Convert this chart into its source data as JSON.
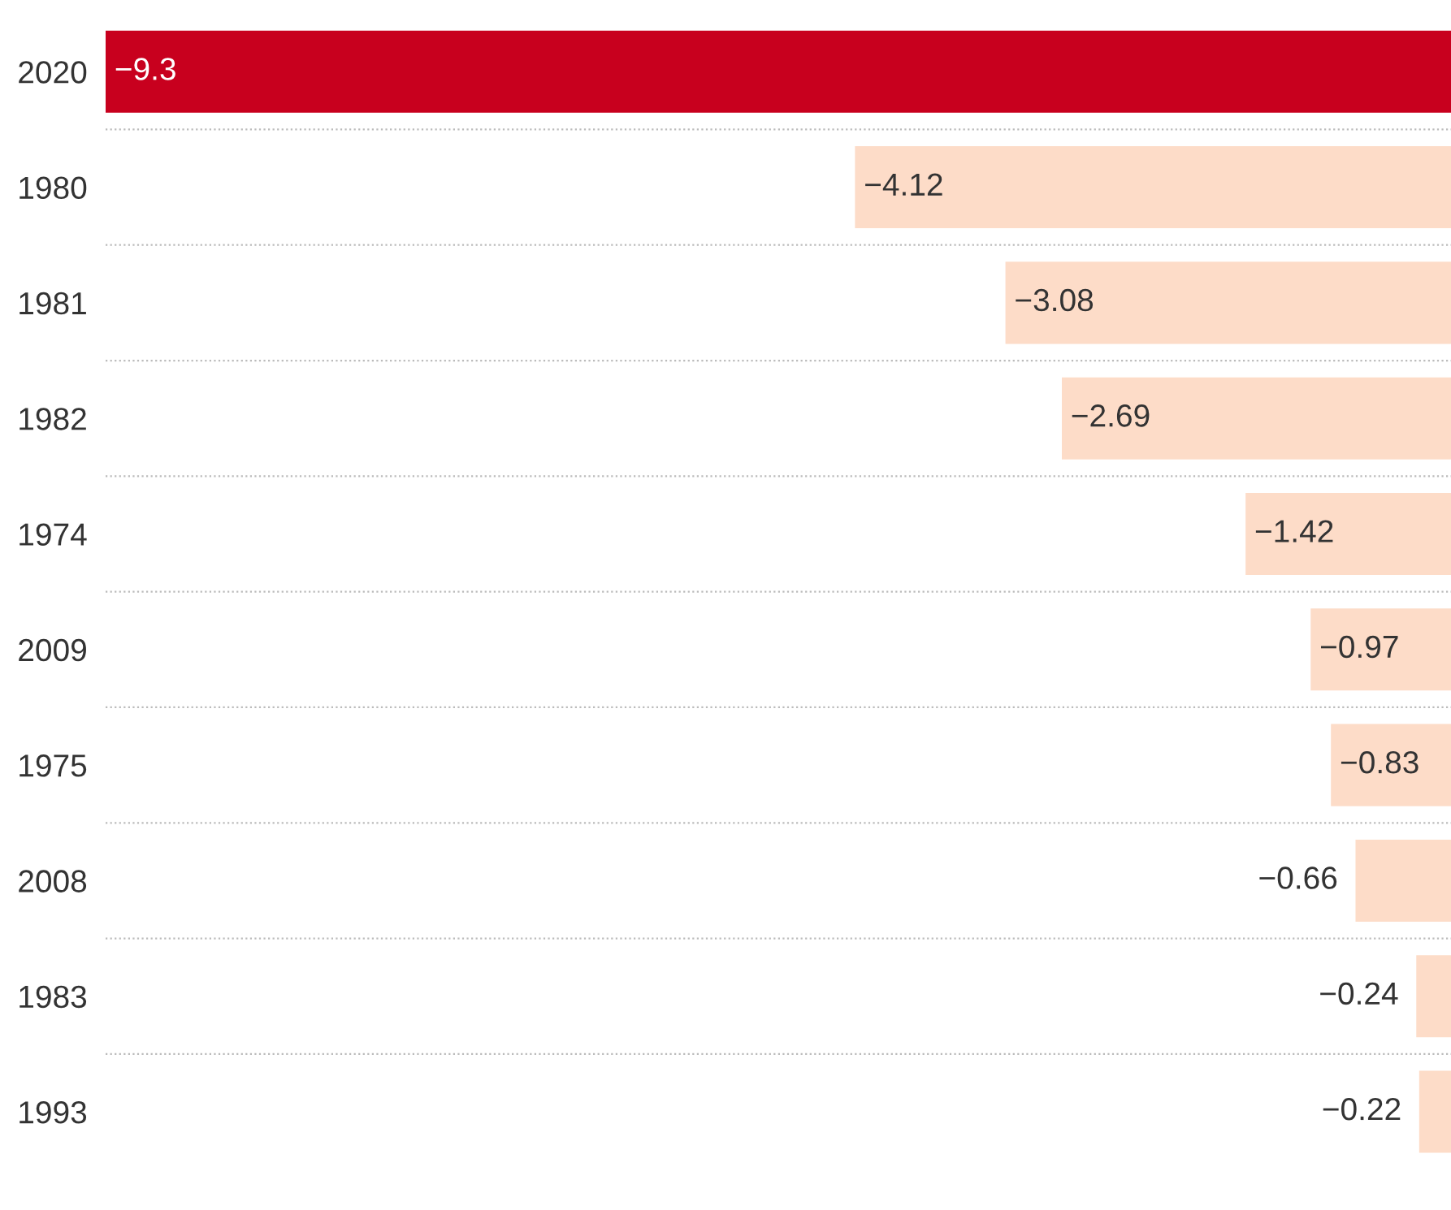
{
  "chart_data": {
    "type": "bar",
    "orientation": "horizontal",
    "categories": [
      "2020",
      "1980",
      "1981",
      "1982",
      "1974",
      "2009",
      "1975",
      "2008",
      "1983",
      "1993"
    ],
    "values": [
      -9.3,
      -4.12,
      -3.08,
      -2.69,
      -1.42,
      -0.97,
      -0.83,
      -0.66,
      -0.24,
      -0.22
    ],
    "colors": [
      "#c8001e",
      "#fddcc8",
      "#fddcc8",
      "#fddcc8",
      "#fddcc8",
      "#fddcc8",
      "#fddcc8",
      "#fddcc8",
      "#fddcc8",
      "#fddcc8"
    ],
    "xlim": [
      -9.3,
      0
    ],
    "data_labels": true,
    "grid": "y",
    "tick_labels": "y",
    "legend": false
  }
}
